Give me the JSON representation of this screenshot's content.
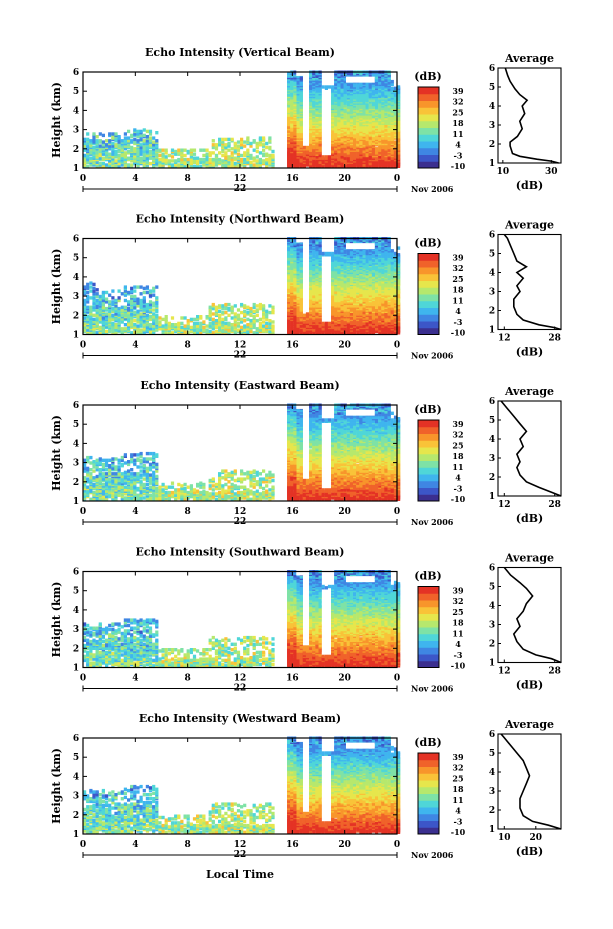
{
  "chart_data": {
    "type": "heatmap",
    "colorbar": {
      "unit": "(dB)",
      "ticks": [
        "39",
        "32",
        "25",
        "18",
        "11",
        "4",
        "-3",
        "-10"
      ],
      "range": [
        -10,
        39
      ],
      "colors": [
        "#3b2f8f",
        "#3c56c8",
        "#3f86e3",
        "#3fb5ee",
        "#4fd6d8",
        "#7ee2a6",
        "#b6e86d",
        "#e6e64c",
        "#f9c338",
        "#f8952b",
        "#f0622a",
        "#e43225"
      ]
    },
    "x_ticks": [
      "0",
      "4",
      "8",
      "12",
      "16",
      "20",
      "0"
    ],
    "x_range_hours": [
      0,
      24
    ],
    "y_ticks": [
      "1",
      "2",
      "3",
      "4",
      "5",
      "6"
    ],
    "y_range_km": [
      1,
      6
    ],
    "date_label": "22",
    "month_label": "Nov 2006",
    "ylabel": "Height (km)",
    "xlabel": "Local Time",
    "avg_title": "Average",
    "avg_xlabel": "(dB)",
    "panels": [
      {
        "title": "Echo Intensity (Vertical Beam)",
        "avg_xticks": [
          "10",
          "30"
        ],
        "avg_xtick_values": [
          10,
          30
        ],
        "avg_xlim": [
          8,
          34
        ],
        "avg_profile": [
          [
            33,
            1.0
          ],
          [
            30,
            1.1
          ],
          [
            24,
            1.2
          ],
          [
            17,
            1.35
          ],
          [
            14,
            1.5
          ],
          [
            13,
            1.9
          ],
          [
            13,
            2.1
          ],
          [
            16,
            2.4
          ],
          [
            18,
            2.8
          ],
          [
            17,
            3.2
          ],
          [
            19,
            3.6
          ],
          [
            18,
            4.0
          ],
          [
            20,
            4.3
          ],
          [
            17,
            4.6
          ],
          [
            15,
            4.9
          ],
          [
            13,
            5.3
          ],
          [
            12,
            5.6
          ],
          [
            11,
            6.0
          ]
        ]
      },
      {
        "title": "Echo Intensity (Northward Beam)",
        "avg_xticks": [
          "12",
          "28"
        ],
        "avg_xtick_values": [
          12,
          28
        ],
        "avg_xlim": [
          10,
          30
        ],
        "avg_profile": [
          [
            30,
            1.0
          ],
          [
            28,
            1.1
          ],
          [
            23,
            1.25
          ],
          [
            18,
            1.5
          ],
          [
            16,
            1.8
          ],
          [
            15,
            2.2
          ],
          [
            15,
            2.6
          ],
          [
            17,
            3.0
          ],
          [
            16,
            3.3
          ],
          [
            18,
            3.7
          ],
          [
            16,
            4.0
          ],
          [
            19,
            4.3
          ],
          [
            16,
            4.6
          ],
          [
            15,
            5.0
          ],
          [
            14,
            5.4
          ],
          [
            13,
            5.8
          ],
          [
            12,
            6.0
          ]
        ]
      },
      {
        "title": "Echo Intensity (Eastward Beam)",
        "avg_xticks": [
          "12",
          "28"
        ],
        "avg_xtick_values": [
          12,
          28
        ],
        "avg_xlim": [
          10,
          30
        ],
        "avg_profile": [
          [
            30,
            1.0
          ],
          [
            27,
            1.2
          ],
          [
            23,
            1.45
          ],
          [
            19,
            1.75
          ],
          [
            17,
            2.1
          ],
          [
            16,
            2.5
          ],
          [
            17,
            2.8
          ],
          [
            16,
            3.2
          ],
          [
            18,
            3.6
          ],
          [
            17,
            4.0
          ],
          [
            19,
            4.4
          ],
          [
            17,
            4.8
          ],
          [
            15,
            5.2
          ],
          [
            13,
            5.6
          ],
          [
            11,
            6.0
          ]
        ]
      },
      {
        "title": "Echo Intensity (Southward Beam)",
        "avg_xticks": [
          "12",
          "28"
        ],
        "avg_xtick_values": [
          12,
          28
        ],
        "avg_xlim": [
          10,
          30
        ],
        "avg_profile": [
          [
            30,
            1.0
          ],
          [
            27,
            1.2
          ],
          [
            22,
            1.4
          ],
          [
            18,
            1.7
          ],
          [
            16,
            2.1
          ],
          [
            15,
            2.5
          ],
          [
            17,
            2.9
          ],
          [
            16,
            3.3
          ],
          [
            18,
            3.7
          ],
          [
            19,
            4.1
          ],
          [
            21,
            4.5
          ],
          [
            19,
            4.9
          ],
          [
            17,
            5.2
          ],
          [
            14,
            5.6
          ],
          [
            12,
            6.0
          ]
        ]
      },
      {
        "title": "Echo Intensity (Westward Beam)",
        "avg_xticks": [
          "10",
          "20"
        ],
        "avg_xtick_values": [
          10,
          20
        ],
        "avg_xlim": [
          8,
          28
        ],
        "avg_profile": [
          [
            28,
            1.0
          ],
          [
            24,
            1.2
          ],
          [
            19,
            1.4
          ],
          [
            16,
            1.7
          ],
          [
            15,
            2.1
          ],
          [
            15,
            2.6
          ],
          [
            16,
            3.0
          ],
          [
            17,
            3.4
          ],
          [
            18,
            3.8
          ],
          [
            17,
            4.2
          ],
          [
            16,
            4.6
          ],
          [
            14,
            5.0
          ],
          [
            12,
            5.4
          ],
          [
            10,
            5.8
          ],
          [
            9,
            6.0
          ]
        ]
      }
    ]
  }
}
